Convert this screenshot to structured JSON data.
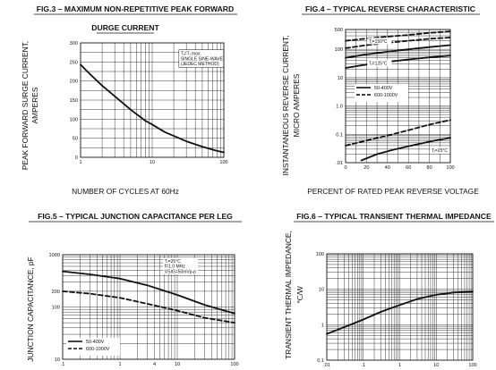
{
  "chart_data": [
    {
      "id": "fig3",
      "type": "line",
      "title": "FIG.3 – MAXIMUM NON-REPETITIVE PEAK FORWARD",
      "subtitle": "DURGE CURRENT",
      "xlabel": "NUMBER OF CYCLES AT 60Hz",
      "ylabel": [
        "PEAK FORWARD SURGE CURRENT,",
        "AMPERES"
      ],
      "xscale": "log",
      "yscale": "linear",
      "xlim": [
        1,
        100
      ],
      "ylim": [
        0,
        300
      ],
      "xticks": [
        {
          "v": 1,
          "label": "1"
        },
        {
          "v": 10,
          "label": "10"
        },
        {
          "v": 100,
          "label": "100"
        }
      ],
      "yticks": [
        {
          "v": 0,
          "label": "0"
        },
        {
          "v": 50,
          "label": "50"
        },
        {
          "v": 100,
          "label": "100"
        },
        {
          "v": 150,
          "label": "150"
        },
        {
          "v": 200,
          "label": "200"
        },
        {
          "v": 250,
          "label": "250"
        },
        {
          "v": 300,
          "label": "300"
        }
      ],
      "grid": true,
      "annotations": [
        {
          "lines": [
            "Tⱼ=Tⱼ max.",
            "SINGLE SINE-WAVE",
            "(JEDEC METHOD)"
          ],
          "x": 25,
          "y": 268,
          "boxed": true
        }
      ],
      "series": [
        {
          "style": "solid",
          "x": [
            1,
            1.2,
            1.5,
            2,
            3,
            5,
            8,
            10,
            15,
            20,
            30,
            50,
            80,
            100
          ],
          "y": [
            243,
            228,
            210,
            188,
            160,
            125,
            96,
            86,
            66,
            56,
            42,
            28,
            17,
            13
          ]
        }
      ]
    },
    {
      "id": "fig4",
      "type": "line",
      "title": "FIG.4 – TYPICAL REVERSE CHARACTERISTIC",
      "xlabel": "PERCENT OF RATED PEAK REVERSE VOLTAGE",
      "ylabel": [
        "INSTANTANEOUS REVERSE CURRENT,",
        "MICRO AMPERES"
      ],
      "xscale": "linear",
      "yscale": "log",
      "xlim": [
        0,
        100
      ],
      "ylim": [
        0.01,
        500
      ],
      "xticks": [
        {
          "v": 0,
          "label": "0"
        },
        {
          "v": 20,
          "label": "20"
        },
        {
          "v": 40,
          "label": "40"
        },
        {
          "v": 60,
          "label": "60"
        },
        {
          "v": 80,
          "label": "80"
        },
        {
          "v": 100,
          "label": "100"
        }
      ],
      "yticks": [
        {
          "v": 0.01,
          "label": ".01"
        },
        {
          "v": 0.1,
          "label": "0.1"
        },
        {
          "v": 1,
          "label": "1.0"
        },
        {
          "v": 10,
          "label": "10"
        },
        {
          "v": 100,
          "label": "100"
        },
        {
          "v": 500,
          "label": "500"
        }
      ],
      "grid": true,
      "annotations": [
        {
          "lines": [
            "Tⱼ=150°C"
          ],
          "x": 22,
          "y": 170,
          "boxed": false
        },
        {
          "lines": [
            "Tⱼ=125°C"
          ],
          "x": 22,
          "y": 28,
          "boxed": false
        },
        {
          "lines": [
            "Tⱼ=25°C"
          ],
          "x": 82,
          "y": 0.024,
          "boxed": false
        }
      ],
      "legend": {
        "position": "center-right",
        "entries": [
          {
            "label": "50-400V",
            "style": "solid"
          },
          {
            "label": "600-1000V",
            "style": "dashed"
          }
        ]
      },
      "series": [
        {
          "style": "dashed",
          "x": [
            0,
            20,
            40,
            60,
            80,
            100
          ],
          "y": [
            200,
            240,
            280,
            320,
            380,
            430
          ]
        },
        {
          "style": "dashed",
          "x": [
            0,
            20,
            40,
            60,
            80,
            100
          ],
          "y": [
            110,
            140,
            170,
            200,
            235,
            260
          ]
        },
        {
          "style": "solid",
          "x": [
            0,
            20,
            40,
            60,
            80,
            100
          ],
          "y": [
            50,
            66,
            82,
            100,
            120,
            140
          ]
        },
        {
          "style": "solid",
          "x": [
            0,
            20,
            40,
            60,
            80,
            100
          ],
          "y": [
            22,
            29,
            36,
            44,
            52,
            60
          ]
        },
        {
          "style": "dashed",
          "x": [
            0,
            20,
            40,
            60,
            80,
            100
          ],
          "y": [
            0.04,
            0.06,
            0.09,
            0.14,
            0.22,
            0.32
          ]
        },
        {
          "style": "solid",
          "x": [
            15,
            30,
            45,
            60,
            80,
            100
          ],
          "y": [
            0.012,
            0.02,
            0.028,
            0.038,
            0.055,
            0.075
          ]
        }
      ]
    },
    {
      "id": "fig5",
      "type": "line",
      "title": "FIG.5 – TYPICAL JUNCTION CAPACITANCE PER LEG",
      "xlabel": "",
      "ylabel": [
        "JUNCTION CAPACITANCE, pF"
      ],
      "xscale": "log",
      "yscale": "log",
      "xlim": [
        0.1,
        100
      ],
      "ylim": [
        10,
        1000
      ],
      "xticks": [
        {
          "v": 0.1,
          "label": ".1"
        },
        {
          "v": 1,
          "label": "1"
        },
        {
          "v": 4,
          "label": "4"
        },
        {
          "v": 10,
          "label": "10"
        },
        {
          "v": 100,
          "label": "100"
        }
      ],
      "yticks": [
        {
          "v": 10,
          "label": "10"
        },
        {
          "v": 100,
          "label": "100"
        },
        {
          "v": 200,
          "label": "200"
        },
        {
          "v": 1000,
          "label": "1000"
        }
      ],
      "grid": true,
      "annotations": [
        {
          "lines": [
            "Tⱼ=25°C",
            "f=1.0 MHz",
            "VSIG=50mVp-p"
          ],
          "x": 6,
          "y": 700,
          "boxed": false
        }
      ],
      "legend": {
        "position": "lower-left",
        "entries": [
          {
            "label": "50-400V",
            "style": "solid"
          },
          {
            "label": "600-1000V",
            "style": "dashed"
          }
        ]
      },
      "series": [
        {
          "style": "solid",
          "x": [
            0.1,
            0.3,
            1,
            3,
            10,
            30,
            100
          ],
          "y": [
            480,
            420,
            350,
            260,
            170,
            110,
            75
          ]
        },
        {
          "style": "dashed",
          "x": [
            0.1,
            0.3,
            1,
            3,
            10,
            30,
            100
          ],
          "y": [
            200,
            180,
            150,
            115,
            85,
            62,
            50
          ]
        }
      ]
    },
    {
      "id": "fig6",
      "type": "line",
      "title": "FIG.6 – TYPICAL TRANSIENT THERMAL IMPEDANCE",
      "xlabel": "",
      "ylabel": [
        "TRANSIENT THERMAL IMPEDANCE,",
        "℃/W"
      ],
      "xscale": "log",
      "yscale": "log",
      "xlim": [
        0.01,
        100
      ],
      "ylim": [
        0.1,
        100
      ],
      "xticks": [
        {
          "v": 0.01,
          "label": ".01"
        },
        {
          "v": 0.1,
          "label": ".1"
        },
        {
          "v": 1,
          "label": "1"
        },
        {
          "v": 10,
          "label": "10"
        },
        {
          "v": 100,
          "label": "100"
        }
      ],
      "yticks": [
        {
          "v": 0.1,
          "label": "0.1"
        },
        {
          "v": 1,
          "label": "1"
        },
        {
          "v": 10,
          "label": "10"
        },
        {
          "v": 100,
          "label": "100"
        }
      ],
      "grid": true,
      "series": [
        {
          "style": "solid",
          "x": [
            0.01,
            0.03,
            0.1,
            0.3,
            1,
            3,
            10,
            30,
            100
          ],
          "y": [
            0.55,
            0.85,
            1.4,
            2.3,
            3.6,
            5.3,
            7,
            8.1,
            8.6
          ]
        }
      ]
    }
  ]
}
